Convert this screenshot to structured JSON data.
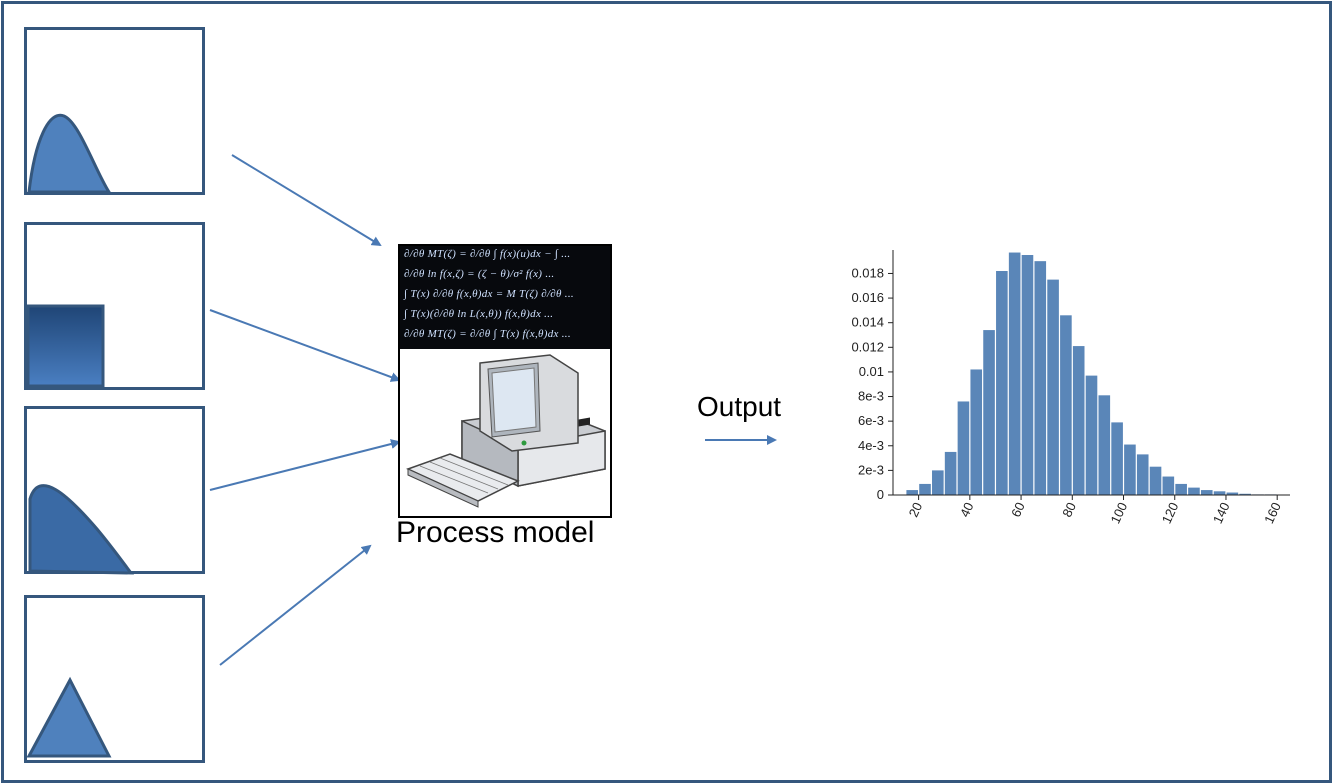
{
  "process_model": {
    "label": "Process model",
    "equations": [
      "∂/∂θ MT(ζ) = ∂/∂θ ∫ f(x)(u)dx − ∫ ...",
      "∂/∂θ ln f(x,ζ) = (ζ − θ)/σ²  f(x) ...",
      "∫ T(x) ∂/∂θ f(x,θ)dx = M T(ζ) ∂/∂θ ...",
      "∫ T(x)(∂/∂θ ln L(x,θ)) f(x,θ)dx ...",
      "∂/∂θ MT(ζ) = ∂/∂θ ∫ T(x) f(x,θ)dx ..."
    ]
  },
  "output": {
    "label": "Output"
  },
  "inputs": [
    {
      "shape": "beta-hump",
      "color": "#4f81bd"
    },
    {
      "shape": "uniform-block",
      "color": "#2f5a93"
    },
    {
      "shape": "decaying",
      "color": "#3a6aa5"
    },
    {
      "shape": "triangle",
      "color": "#4f81bd"
    }
  ],
  "chart_data": {
    "type": "bar",
    "title": "",
    "xlabel": "",
    "ylabel": "",
    "x_ticks": [
      20,
      40,
      60,
      80,
      100,
      120,
      140,
      160
    ],
    "y_ticks": [
      "0",
      "2e-3",
      "4e-3",
      "6e-3",
      "8e-3",
      "0.01",
      "0.012",
      "0.014",
      "0.016",
      "0.018"
    ],
    "y_tick_values": [
      0,
      0.002,
      0.004,
      0.006,
      0.008,
      0.01,
      0.012,
      0.014,
      0.016,
      0.018
    ],
    "xlim": [
      10,
      165
    ],
    "ylim": [
      0,
      0.0195
    ],
    "bar_width": 5,
    "bin_starts": [
      15,
      20,
      25,
      30,
      35,
      40,
      45,
      50,
      55,
      60,
      65,
      70,
      75,
      80,
      85,
      90,
      95,
      100,
      105,
      110,
      115,
      120,
      125,
      130,
      135,
      140,
      145,
      150,
      155
    ],
    "values": [
      0.0004,
      0.0009,
      0.002,
      0.0035,
      0.0076,
      0.0102,
      0.0134,
      0.0182,
      0.0197,
      0.0195,
      0.019,
      0.0175,
      0.0146,
      0.0121,
      0.0097,
      0.0081,
      0.0059,
      0.0041,
      0.0033,
      0.0023,
      0.0015,
      0.0009,
      0.0006,
      0.0004,
      0.0003,
      0.0002,
      0.0001,
      5e-05,
      5e-05
    ],
    "bar_color": "#5a86b8",
    "grid": false
  }
}
